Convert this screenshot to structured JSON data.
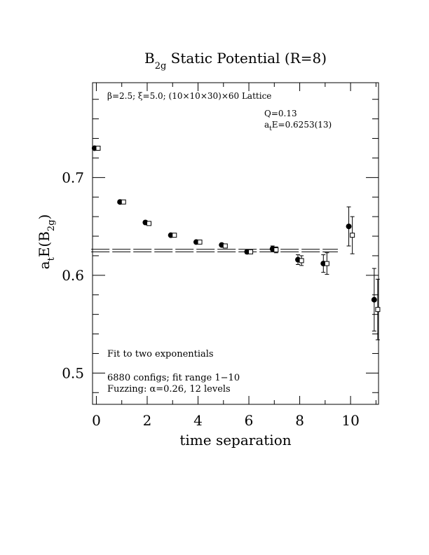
{
  "chart_data": {
    "type": "scatter",
    "title": {
      "base": "B",
      "sub": "2g",
      "rest": " Static Potential (R=8)"
    },
    "xlabel": "time separation",
    "ylabel": {
      "a": "a",
      "a_sub": "t",
      "mid": "E(B",
      "b_sub": "2g",
      "close": ")"
    },
    "xlim": [
      -0.15,
      11.1
    ],
    "ylim": [
      0.468,
      0.797
    ],
    "x_ticks": [
      0,
      2,
      4,
      6,
      8,
      10
    ],
    "y_ticks": [
      0.5,
      0.6,
      0.7
    ],
    "x_tick_labels": [
      "0",
      "2",
      "4",
      "6",
      "8",
      "10"
    ],
    "y_tick_labels": [
      "0.5",
      "0.6",
      "0.7"
    ],
    "annotations": {
      "lattice": "β=2.5; ξ=5.0; (10×10×30)×60 Lattice",
      "q": "Q=0.13",
      "energy_a": "a",
      "energy_sub": "t",
      "energy_rest": "E=0.6253(13)",
      "fit_method": "Fit to two exponentials",
      "configs": "6880 configs; fit range 1−10",
      "fuzzing": "Fuzzing: α=0.26, 12 levels"
    },
    "fit": {
      "value": 0.6253,
      "error": 0.0013,
      "x_range": [
        -0.2,
        9.5
      ]
    },
    "series": [
      {
        "marker": "filled-circle",
        "offset": -0.07,
        "points": [
          {
            "x": 0,
            "y": 0.73,
            "err": 0.001
          },
          {
            "x": 1,
            "y": 0.675,
            "err": 0.001
          },
          {
            "x": 2,
            "y": 0.654,
            "err": 0.001
          },
          {
            "x": 3,
            "y": 0.641,
            "err": 0.001
          },
          {
            "x": 4,
            "y": 0.634,
            "err": 0.001
          },
          {
            "x": 5,
            "y": 0.631,
            "err": 0.0015
          },
          {
            "x": 6,
            "y": 0.624,
            "err": 0.002
          },
          {
            "x": 7,
            "y": 0.627,
            "err": 0.003
          },
          {
            "x": 8,
            "y": 0.616,
            "err": 0.005
          },
          {
            "x": 9,
            "y": 0.612,
            "err": 0.009
          },
          {
            "x": 10,
            "y": 0.65,
            "err": 0.02
          },
          {
            "x": 11,
            "y": 0.575,
            "err": 0.032
          }
        ]
      },
      {
        "marker": "open-square",
        "offset": 0.07,
        "points": [
          {
            "x": 0,
            "y": 0.73,
            "err": 0.001
          },
          {
            "x": 1,
            "y": 0.675,
            "err": 0.001
          },
          {
            "x": 2,
            "y": 0.653,
            "err": 0.001
          },
          {
            "x": 3,
            "y": 0.641,
            "err": 0.001
          },
          {
            "x": 4,
            "y": 0.634,
            "err": 0.001
          },
          {
            "x": 5,
            "y": 0.63,
            "err": 0.0015
          },
          {
            "x": 6,
            "y": 0.624,
            "err": 0.002
          },
          {
            "x": 7,
            "y": 0.626,
            "err": 0.003
          },
          {
            "x": 8,
            "y": 0.615,
            "err": 0.005
          },
          {
            "x": 9,
            "y": 0.612,
            "err": 0.011
          },
          {
            "x": 10,
            "y": 0.641,
            "err": 0.019
          },
          {
            "x": 11,
            "y": 0.565,
            "err": 0.031
          }
        ]
      }
    ]
  }
}
